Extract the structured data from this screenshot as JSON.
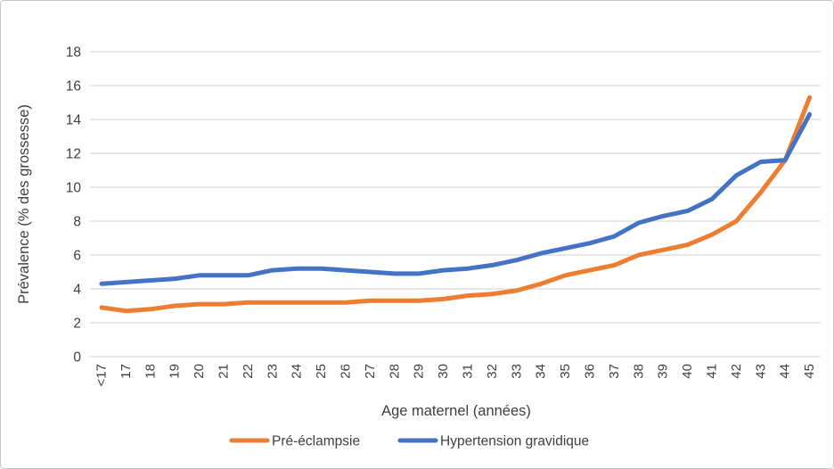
{
  "chart_data": {
    "type": "line",
    "title": "",
    "xlabel": "Age maternel (années)",
    "ylabel": "Prévalence (% des grossesse)",
    "categories": [
      "<17",
      "17",
      "18",
      "19",
      "20",
      "21",
      "22",
      "23",
      "24",
      "25",
      "26",
      "27",
      "28",
      "29",
      "30",
      "31",
      "32",
      "33",
      "34",
      "35",
      "36",
      "37",
      "38",
      "39",
      "40",
      "41",
      "42",
      "43",
      "44",
      "45"
    ],
    "series": [
      {
        "name": "Pré-éclampsie",
        "color": "#ED7D31",
        "values": [
          2.9,
          2.7,
          2.8,
          3.0,
          3.1,
          3.1,
          3.2,
          3.2,
          3.2,
          3.2,
          3.2,
          3.3,
          3.3,
          3.3,
          3.4,
          3.6,
          3.7,
          3.9,
          4.3,
          4.8,
          5.1,
          5.4,
          6.0,
          6.3,
          6.6,
          7.2,
          8.0,
          9.7,
          11.6,
          15.3
        ]
      },
      {
        "name": "Hypertension gravidique",
        "color": "#4472C4",
        "values": [
          4.3,
          4.4,
          4.5,
          4.6,
          4.8,
          4.8,
          4.8,
          5.1,
          5.2,
          5.2,
          5.1,
          5.0,
          4.9,
          4.9,
          5.1,
          5.2,
          5.4,
          5.7,
          6.1,
          6.4,
          6.7,
          7.1,
          7.9,
          8.3,
          8.6,
          9.3,
          10.7,
          11.5,
          11.6,
          14.3
        ]
      }
    ],
    "ylim": [
      0,
      18
    ],
    "ytick_step": 2,
    "grid": true,
    "legend_position": "bottom"
  },
  "styles": {
    "grid_color": "#D9D9D9",
    "text_color": "#3F3F3F",
    "border_color": "#C6C6C6",
    "background": "#FFFFFF"
  }
}
